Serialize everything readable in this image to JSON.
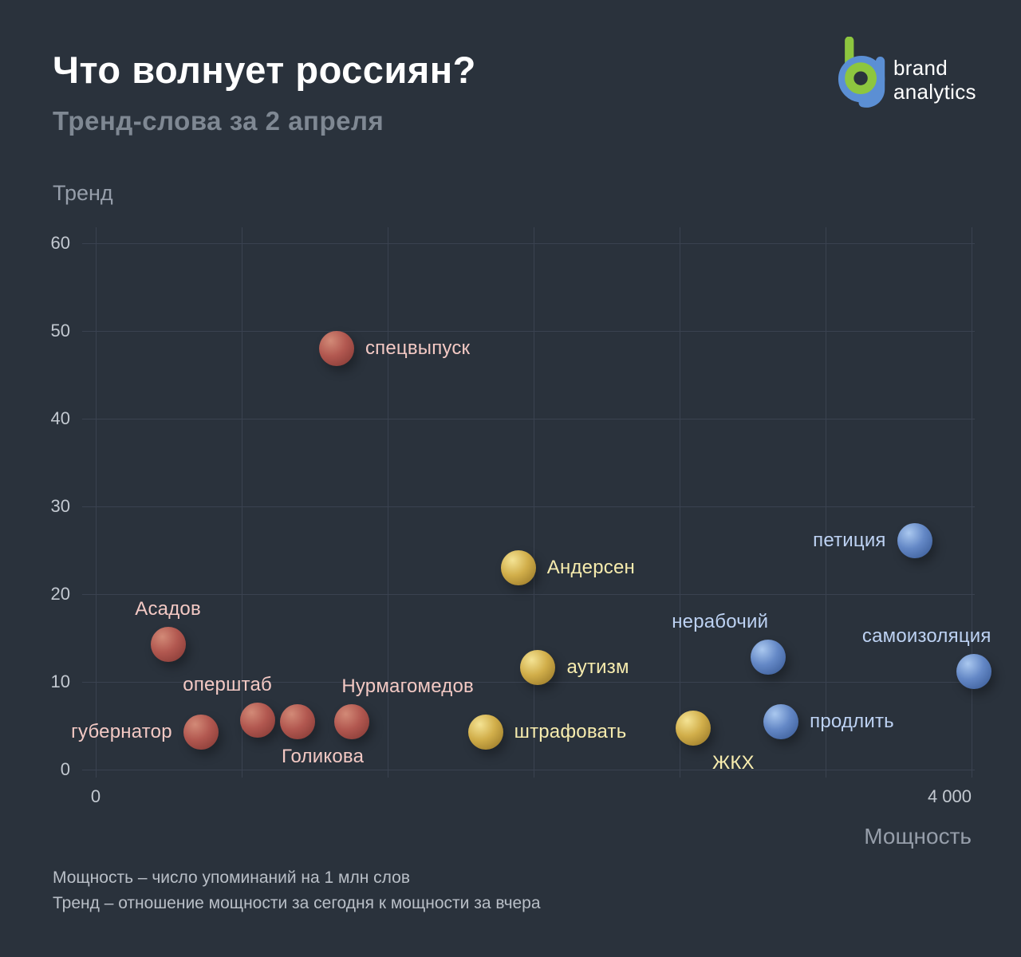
{
  "header": {
    "title": "Что волнует россиян?",
    "subtitle": "Тренд-слова за 2 апреля"
  },
  "logo": {
    "text_line1": "brand",
    "text_line2": "analytics",
    "green": "#8dc63f",
    "blue": "#5b8fd4"
  },
  "chart_data": {
    "type": "scatter",
    "title": "Что волнует россиян?",
    "xlabel": "Мощность",
    "ylabel": "Тренд",
    "xlim": [
      0,
      4000
    ],
    "ylim": [
      0,
      60
    ],
    "x_ticks": [
      0,
      4000
    ],
    "x_tick_labels": [
      "0",
      "4 000"
    ],
    "y_ticks": [
      0,
      10,
      20,
      30,
      40,
      50,
      60
    ],
    "x_gridline_divisions": 6,
    "grid": true,
    "legend_position": "none",
    "series": [
      {
        "name": "red",
        "color_hi": "#d28a77",
        "color_mid": "#b25850",
        "color_lo": "#7e3531",
        "label_color": "#f3c9c4",
        "points": [
          {
            "label": "спецвыпуск",
            "x": 1100,
            "y": 48,
            "label_side": "right"
          },
          {
            "label": "Асадов",
            "x": 330,
            "y": 14.3,
            "label_side": "top"
          },
          {
            "label": "губернатор",
            "x": 480,
            "y": 4.3,
            "label_side": "left"
          },
          {
            "label": "оперштаб",
            "x": 740,
            "y": 5.6,
            "label_side": "top",
            "label_dx": -38
          },
          {
            "label": "Голикова",
            "x": 920,
            "y": 5.5,
            "label_side": "bottom",
            "label_dx": 32
          },
          {
            "label": "Нурмагомедов",
            "x": 1170,
            "y": 5.5,
            "label_side": "top",
            "label_dx": 70
          }
        ]
      },
      {
        "name": "yellow",
        "color_hi": "#f4e394",
        "color_mid": "#d1ae4a",
        "color_lo": "#8f6f22",
        "label_color": "#f7ecae",
        "points": [
          {
            "label": "Андерсен",
            "x": 1930,
            "y": 23,
            "label_side": "right"
          },
          {
            "label": "аутизм",
            "x": 2020,
            "y": 11.6,
            "label_side": "right"
          },
          {
            "label": "штрафовать",
            "x": 1780,
            "y": 4.3,
            "label_side": "right"
          },
          {
            "label": "ЖКХ",
            "x": 2730,
            "y": 4.7,
            "label_side": "bottom",
            "label_dx": 50
          }
        ]
      },
      {
        "name": "blue",
        "color_hi": "#aac8ef",
        "color_mid": "#6488c6",
        "color_lo": "#33548f",
        "label_color": "#bdd2f3",
        "points": [
          {
            "label": "нерабочий",
            "x": 3070,
            "y": 12.8,
            "label_side": "top",
            "label_dx": -60
          },
          {
            "label": "продлить",
            "x": 3130,
            "y": 5.5,
            "label_side": "right"
          },
          {
            "label": "петиция",
            "x": 3740,
            "y": 26.1,
            "label_side": "left"
          },
          {
            "label": "самоизоляция",
            "x": 4010,
            "y": 11.2,
            "label_side": "top",
            "label_dx": -59
          }
        ]
      }
    ]
  },
  "footer": {
    "line1": "Мощность – число упоминаний на 1 млн слов",
    "line2": "Тренд – отношение мощности за сегодня к мощности за вчера"
  }
}
